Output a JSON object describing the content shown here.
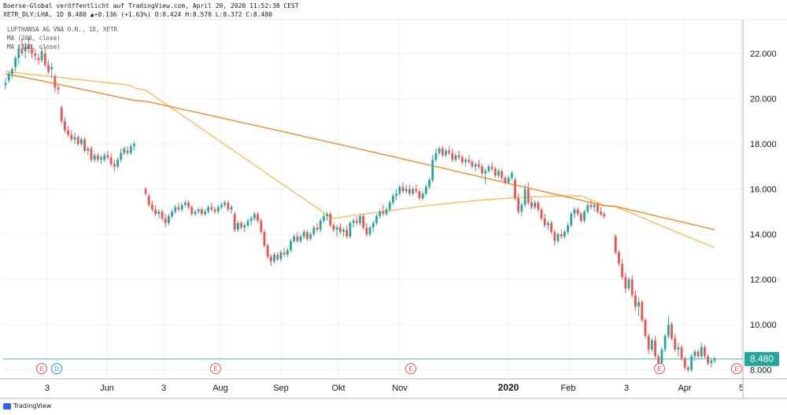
{
  "header": {
    "line1": "Boerse-Global veröffentlicht auf TradingView.com, April 20, 2020 11:52:38 CEST",
    "line2": "XETR_DLY:LHA, 1D 8.480 ▲+0.136 (+1.63%) O:8.424 H:8.570 L:8.372 C:8.480"
  },
  "legend": {
    "symbol": "LUFTHANSA AG VNA O.N., 1D, XETR",
    "ma1": "MA (200, close)",
    "ma2": "MA (100, close)"
  },
  "brand": {
    "name": "TradingView"
  },
  "colors": {
    "up": "#26a69a",
    "down": "#ef5350",
    "ma200": "#f57f17",
    "ma100": "#ffb74d",
    "price_line": "#26a69a",
    "grid": "#eef0f3",
    "axis_text": "#131722"
  },
  "chart_data": {
    "type": "candlestick",
    "y_axis": {
      "min": 7.6,
      "max": 23.5,
      "ticks": [
        "8.000",
        "10.000",
        "12.000",
        "14.000",
        "16.000",
        "18.000",
        "20.000",
        "22.000"
      ],
      "position": "right"
    },
    "x_axis": {
      "ticks": [
        "3",
        "Jun",
        "3",
        "Aug",
        "Sep",
        "Okt",
        "Nov",
        "2020",
        "Feb",
        "3",
        "Apr",
        "5"
      ],
      "bold": [
        "2020"
      ]
    },
    "last_price": 8.48,
    "last_price_label": "8.480",
    "events": [
      "E",
      "D",
      "E",
      "E",
      "E",
      "E"
    ],
    "candles": [
      [
        20.6,
        20.9,
        20.4,
        20.7
      ],
      [
        20.8,
        21.2,
        20.7,
        21.1
      ],
      [
        21.1,
        21.4,
        20.9,
        21.3
      ],
      [
        21.4,
        21.9,
        21.2,
        21.8
      ],
      [
        21.8,
        22.4,
        21.5,
        22.2
      ],
      [
        22.2,
        22.7,
        21.9,
        22.0
      ],
      [
        22.1,
        22.5,
        21.8,
        22.3
      ],
      [
        22.3,
        22.7,
        22.0,
        22.2
      ],
      [
        22.2,
        22.4,
        21.8,
        22.0
      ],
      [
        22.0,
        22.2,
        21.7,
        21.9
      ],
      [
        21.8,
        22.0,
        21.5,
        21.7
      ],
      [
        21.7,
        22.3,
        21.6,
        22.1
      ],
      [
        22.0,
        22.3,
        21.4,
        21.5
      ],
      [
        21.5,
        21.7,
        21.1,
        21.2
      ],
      [
        21.3,
        21.6,
        20.9,
        21.4
      ],
      [
        21.0,
        21.1,
        20.3,
        20.5
      ],
      [
        20.5,
        20.6,
        20.2,
        20.4
      ],
      [
        19.6,
        19.7,
        18.9,
        19.0
      ],
      [
        19.0,
        19.2,
        18.5,
        18.6
      ],
      [
        18.6,
        18.8,
        18.3,
        18.4
      ],
      [
        18.4,
        18.6,
        18.1,
        18.2
      ],
      [
        18.2,
        18.5,
        18.0,
        18.3
      ],
      [
        18.3,
        18.4,
        17.9,
        18.0
      ],
      [
        18.0,
        18.3,
        17.9,
        18.2
      ],
      [
        18.2,
        18.3,
        17.6,
        17.7
      ],
      [
        17.7,
        17.9,
        17.5,
        17.8
      ],
      [
        17.8,
        17.9,
        17.2,
        17.3
      ],
      [
        17.3,
        17.6,
        17.2,
        17.5
      ],
      [
        17.5,
        17.6,
        17.2,
        17.3
      ],
      [
        17.3,
        17.5,
        17.1,
        17.4
      ],
      [
        17.3,
        17.6,
        17.2,
        17.5
      ],
      [
        17.5,
        17.7,
        17.3,
        17.4
      ],
      [
        17.4,
        17.6,
        17.0,
        17.1
      ],
      [
        17.1,
        17.3,
        16.8,
        17.0
      ],
      [
        17.0,
        17.4,
        16.9,
        17.3
      ],
      [
        17.3,
        17.8,
        17.2,
        17.6
      ],
      [
        17.6,
        17.9,
        17.5,
        17.8
      ],
      [
        17.7,
        17.9,
        17.5,
        17.6
      ],
      [
        17.6,
        18.0,
        17.5,
        17.9
      ],
      [
        17.9,
        18.1,
        17.7,
        18.0
      ],
      [
        16.0,
        16.1,
        15.7,
        15.8
      ],
      [
        15.7,
        15.8,
        15.2,
        15.3
      ],
      [
        15.3,
        15.5,
        15.0,
        15.1
      ],
      [
        15.1,
        15.3,
        14.8,
        14.9
      ],
      [
        14.9,
        15.1,
        14.7,
        15.0
      ],
      [
        15.0,
        15.1,
        14.6,
        14.7
      ],
      [
        14.7,
        14.9,
        14.3,
        14.5
      ],
      [
        14.5,
        14.9,
        14.4,
        14.8
      ],
      [
        14.8,
        15.1,
        14.7,
        15.0
      ],
      [
        15.0,
        15.3,
        14.9,
        15.2
      ],
      [
        15.2,
        15.4,
        15.0,
        15.1
      ],
      [
        15.1,
        15.4,
        15.0,
        15.3
      ],
      [
        15.3,
        15.5,
        15.2,
        15.4
      ],
      [
        15.4,
        15.5,
        15.1,
        15.2
      ],
      [
        15.2,
        15.3,
        14.8,
        14.9
      ],
      [
        14.9,
        15.1,
        14.8,
        15.0
      ],
      [
        15.0,
        15.2,
        14.9,
        15.1
      ],
      [
        15.1,
        15.2,
        14.8,
        14.9
      ],
      [
        14.9,
        15.1,
        14.8,
        15.0
      ],
      [
        15.0,
        15.3,
        14.9,
        15.2
      ],
      [
        15.2,
        15.4,
        15.0,
        15.1
      ],
      [
        15.1,
        15.2,
        14.9,
        15.0
      ],
      [
        15.0,
        15.3,
        14.9,
        15.2
      ],
      [
        15.2,
        15.4,
        15.1,
        15.3
      ],
      [
        15.3,
        15.5,
        15.2,
        15.4
      ],
      [
        15.4,
        15.5,
        15.0,
        15.1
      ],
      [
        15.1,
        15.3,
        14.9,
        15.2
      ],
      [
        14.9,
        15.0,
        14.1,
        14.2
      ],
      [
        14.2,
        14.6,
        14.1,
        14.5
      ],
      [
        14.5,
        14.6,
        14.2,
        14.3
      ],
      [
        14.3,
        14.5,
        14.1,
        14.4
      ],
      [
        14.4,
        14.7,
        14.3,
        14.6
      ],
      [
        14.6,
        14.8,
        14.4,
        14.7
      ],
      [
        14.7,
        15.0,
        14.6,
        14.9
      ],
      [
        14.9,
        15.0,
        14.5,
        14.6
      ],
      [
        14.6,
        14.7,
        14.0,
        14.1
      ],
      [
        14.1,
        14.2,
        13.4,
        13.5
      ],
      [
        13.5,
        13.6,
        12.9,
        13.0
      ],
      [
        13.0,
        13.1,
        12.6,
        12.8
      ],
      [
        12.8,
        13.2,
        12.7,
        13.1
      ],
      [
        13.1,
        13.2,
        12.8,
        12.9
      ],
      [
        12.9,
        13.3,
        12.8,
        13.2
      ],
      [
        13.2,
        13.4,
        13.0,
        13.1
      ],
      [
        13.1,
        13.4,
        13.0,
        13.3
      ],
      [
        13.3,
        13.8,
        13.2,
        13.7
      ],
      [
        13.7,
        14.0,
        13.6,
        13.9
      ],
      [
        13.9,
        14.1,
        13.6,
        13.7
      ],
      [
        13.7,
        14.0,
        13.6,
        13.9
      ],
      [
        13.9,
        14.2,
        13.8,
        14.1
      ],
      [
        14.1,
        14.2,
        13.7,
        13.8
      ],
      [
        13.8,
        14.1,
        13.7,
        14.0
      ],
      [
        14.0,
        14.4,
        13.9,
        14.3
      ],
      [
        14.3,
        14.5,
        14.1,
        14.2
      ],
      [
        14.2,
        14.7,
        14.1,
        14.6
      ],
      [
        14.6,
        14.9,
        14.5,
        14.8
      ],
      [
        14.8,
        15.0,
        14.6,
        14.9
      ],
      [
        14.9,
        15.0,
        14.3,
        14.4
      ],
      [
        14.4,
        14.5,
        14.1,
        14.2
      ],
      [
        14.2,
        14.4,
        13.9,
        14.3
      ],
      [
        14.3,
        14.5,
        14.0,
        14.1
      ],
      [
        14.1,
        14.3,
        13.9,
        14.2
      ],
      [
        14.2,
        14.4,
        13.8,
        13.9
      ],
      [
        13.9,
        14.6,
        13.8,
        14.5
      ],
      [
        14.5,
        14.7,
        14.3,
        14.6
      ],
      [
        14.6,
        14.8,
        14.4,
        14.5
      ],
      [
        14.5,
        14.9,
        14.4,
        14.8
      ],
      [
        14.8,
        14.9,
        14.2,
        14.3
      ],
      [
        14.3,
        14.5,
        13.9,
        14.0
      ],
      [
        14.0,
        14.4,
        13.9,
        14.3
      ],
      [
        14.3,
        14.6,
        14.1,
        14.5
      ],
      [
        14.5,
        14.9,
        14.4,
        14.8
      ],
      [
        14.8,
        15.1,
        14.7,
        15.0
      ],
      [
        15.0,
        15.3,
        14.8,
        14.9
      ],
      [
        14.9,
        15.2,
        14.8,
        15.1
      ],
      [
        15.1,
        15.5,
        15.0,
        15.4
      ],
      [
        15.4,
        15.8,
        15.3,
        15.7
      ],
      [
        15.7,
        16.0,
        15.5,
        15.8
      ],
      [
        15.8,
        16.2,
        15.7,
        16.1
      ],
      [
        16.1,
        16.3,
        15.8,
        15.9
      ],
      [
        15.9,
        16.2,
        15.8,
        16.0
      ],
      [
        16.0,
        16.2,
        15.7,
        15.8
      ],
      [
        15.8,
        16.1,
        15.7,
        16.0
      ],
      [
        16.0,
        16.2,
        15.8,
        15.9
      ],
      [
        15.9,
        16.0,
        15.5,
        15.6
      ],
      [
        15.6,
        15.9,
        15.5,
        15.8
      ],
      [
        15.8,
        16.2,
        15.7,
        16.1
      ],
      [
        16.1,
        16.5,
        16.0,
        16.4
      ],
      [
        16.4,
        17.5,
        16.3,
        17.3
      ],
      [
        17.3,
        17.8,
        17.2,
        17.6
      ],
      [
        17.6,
        17.9,
        17.5,
        17.8
      ],
      [
        17.8,
        17.9,
        17.4,
        17.5
      ],
      [
        17.5,
        17.8,
        17.4,
        17.7
      ],
      [
        17.7,
        17.9,
        17.5,
        17.6
      ],
      [
        17.6,
        17.8,
        17.2,
        17.3
      ],
      [
        17.3,
        17.6,
        17.2,
        17.5
      ],
      [
        17.5,
        17.7,
        17.3,
        17.4
      ],
      [
        17.4,
        17.5,
        17.1,
        17.2
      ],
      [
        17.2,
        17.4,
        17.0,
        17.3
      ],
      [
        17.3,
        17.5,
        17.1,
        17.2
      ],
      [
        17.2,
        17.3,
        16.9,
        17.0
      ],
      [
        17.0,
        17.2,
        16.8,
        17.1
      ],
      [
        17.1,
        17.3,
        16.9,
        17.0
      ],
      [
        17.0,
        17.1,
        16.6,
        16.7
      ],
      [
        16.7,
        16.9,
        16.2,
        16.8
      ],
      [
        16.8,
        17.1,
        16.7,
        17.0
      ],
      [
        17.0,
        17.2,
        16.8,
        16.9
      ],
      [
        16.9,
        17.0,
        16.5,
        16.6
      ],
      [
        16.6,
        16.9,
        16.5,
        16.8
      ],
      [
        16.8,
        16.9,
        16.4,
        16.5
      ],
      [
        16.5,
        16.6,
        16.2,
        16.3
      ],
      [
        16.3,
        16.6,
        16.2,
        16.5
      ],
      [
        16.5,
        16.8,
        16.4,
        16.7
      ],
      [
        16.4,
        16.5,
        15.5,
        15.6
      ],
      [
        15.6,
        15.8,
        14.9,
        15.0
      ],
      [
        15.0,
        15.4,
        14.8,
        15.3
      ],
      [
        15.3,
        16.2,
        15.2,
        16.0
      ],
      [
        16.0,
        16.3,
        15.3,
        15.4
      ],
      [
        15.4,
        15.6,
        15.1,
        15.2
      ],
      [
        15.2,
        15.5,
        15.1,
        15.4
      ],
      [
        15.4,
        15.5,
        15.0,
        15.1
      ],
      [
        15.1,
        15.2,
        14.6,
        14.7
      ],
      [
        14.7,
        14.9,
        14.3,
        14.4
      ],
      [
        14.4,
        14.6,
        14.2,
        14.5
      ],
      [
        14.5,
        14.6,
        14.0,
        14.1
      ],
      [
        14.1,
        14.2,
        13.5,
        13.7
      ],
      [
        13.7,
        14.1,
        13.6,
        14.0
      ],
      [
        14.0,
        14.2,
        13.8,
        13.9
      ],
      [
        13.9,
        14.2,
        13.8,
        14.1
      ],
      [
        14.1,
        14.5,
        14.0,
        14.4
      ],
      [
        14.4,
        15.0,
        14.3,
        14.9
      ],
      [
        14.9,
        15.2,
        14.7,
        15.1
      ],
      [
        15.1,
        15.2,
        14.8,
        14.9
      ],
      [
        14.9,
        15.0,
        14.5,
        14.6
      ],
      [
        14.6,
        15.1,
        14.5,
        15.0
      ],
      [
        15.0,
        15.4,
        14.9,
        15.3
      ],
      [
        15.3,
        15.5,
        15.1,
        15.2
      ],
      [
        15.2,
        15.4,
        15.0,
        15.3
      ],
      [
        15.3,
        15.4,
        14.9,
        15.0
      ],
      [
        15.0,
        15.2,
        14.8,
        14.9
      ],
      [
        14.9,
        15.0,
        14.7,
        14.8
      ],
      [
        13.9,
        14.0,
        13.1,
        13.2
      ],
      [
        13.2,
        13.3,
        12.6,
        12.7
      ],
      [
        12.7,
        12.9,
        12.0,
        12.1
      ],
      [
        12.1,
        12.3,
        11.4,
        11.6
      ],
      [
        11.6,
        12.1,
        11.5,
        12.0
      ],
      [
        12.0,
        12.2,
        11.2,
        11.3
      ],
      [
        11.3,
        11.5,
        10.6,
        10.8
      ],
      [
        10.8,
        11.2,
        10.4,
        11.0
      ],
      [
        11.0,
        11.1,
        10.1,
        10.2
      ],
      [
        10.2,
        10.3,
        9.4,
        9.5
      ],
      [
        9.5,
        9.6,
        8.7,
        8.9
      ],
      [
        8.9,
        9.4,
        8.8,
        9.3
      ],
      [
        9.3,
        9.5,
        8.5,
        8.6
      ],
      [
        8.6,
        8.7,
        8.1,
        8.3
      ],
      [
        8.3,
        9.0,
        8.2,
        8.9
      ],
      [
        8.9,
        9.6,
        8.8,
        9.5
      ],
      [
        9.5,
        10.4,
        9.4,
        10.0
      ],
      [
        10.0,
        10.1,
        9.3,
        9.4
      ],
      [
        9.4,
        9.6,
        8.8,
        8.9
      ],
      [
        8.9,
        9.2,
        8.6,
        9.0
      ],
      [
        9.0,
        9.1,
        8.4,
        8.5
      ],
      [
        8.5,
        8.6,
        8.0,
        8.1
      ],
      [
        8.1,
        8.2,
        7.9,
        8.0
      ],
      [
        8.0,
        8.7,
        7.9,
        8.6
      ],
      [
        8.6,
        8.9,
        8.4,
        8.8
      ],
      [
        8.8,
        8.9,
        8.5,
        8.6
      ],
      [
        8.6,
        9.2,
        8.5,
        9.0
      ],
      [
        9.0,
        9.1,
        8.5,
        8.6
      ],
      [
        8.6,
        8.7,
        8.2,
        8.3
      ],
      [
        8.3,
        8.5,
        8.1,
        8.4
      ],
      [
        8.4,
        8.6,
        8.3,
        8.5
      ]
    ]
  }
}
